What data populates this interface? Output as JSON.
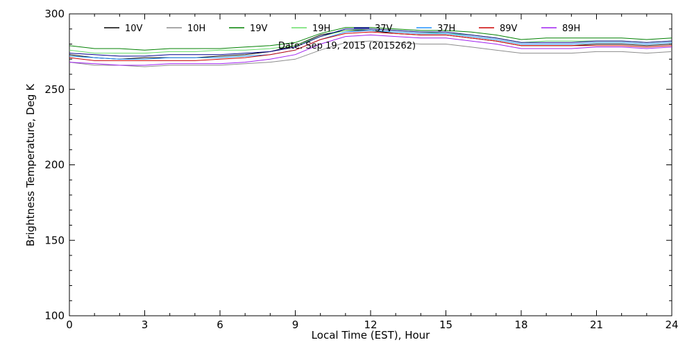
{
  "chart_data": {
    "type": "line",
    "xlabel": "Local Time (EST), Hour",
    "ylabel": "Brightness Temperature, Deg K",
    "xlim": [
      0,
      24
    ],
    "ylim": [
      100,
      300
    ],
    "x_ticks": [
      0,
      3,
      6,
      9,
      12,
      15,
      18,
      21,
      24
    ],
    "y_ticks": [
      100,
      150,
      200,
      250,
      300
    ],
    "grid": false,
    "legend_placement": "top",
    "annotation": "Date: Sep 19, 2015 (2015262)",
    "x": [
      0,
      1,
      2,
      3,
      4,
      5,
      6,
      7,
      8,
      9,
      10,
      11,
      12,
      13,
      14,
      15,
      16,
      17,
      18,
      19,
      20,
      21,
      22,
      23,
      24
    ],
    "series": [
      {
        "name": "10V",
        "color": "#000000",
        "values": [
          273,
          271,
          270,
          271,
          271,
          271,
          272,
          273,
          275,
          279,
          286,
          289,
          289,
          287,
          286,
          286,
          284,
          282,
          279,
          279,
          279,
          280,
          280,
          279,
          280
        ]
      },
      {
        "name": "10H",
        "color": "#8c8c8c",
        "values": [
          268,
          266,
          266,
          265,
          266,
          266,
          266,
          267,
          268,
          270,
          276,
          281,
          282,
          281,
          280,
          280,
          278,
          276,
          274,
          274,
          274,
          275,
          275,
          274,
          275
        ]
      },
      {
        "name": "19V",
        "color": "#008000",
        "values": [
          279,
          277,
          277,
          276,
          277,
          277,
          277,
          278,
          279,
          281,
          287,
          291,
          291,
          290,
          289,
          289,
          288,
          286,
          283,
          284,
          284,
          284,
          284,
          283,
          284
        ]
      },
      {
        "name": "19H",
        "color": "#66dd66",
        "values": [
          276,
          274,
          274,
          274,
          275,
          275,
          276,
          276,
          277,
          279,
          285,
          289,
          290,
          289,
          288,
          287,
          286,
          284,
          281,
          282,
          282,
          282,
          282,
          281,
          282
        ]
      },
      {
        "name": "37V",
        "color": "#00008b",
        "values": [
          274,
          273,
          272,
          272,
          273,
          273,
          273,
          274,
          275,
          278,
          285,
          290,
          290,
          289,
          288,
          288,
          286,
          284,
          281,
          281,
          281,
          282,
          282,
          281,
          282
        ]
      },
      {
        "name": "37H",
        "color": "#1e90ff",
        "values": [
          272,
          271,
          270,
          270,
          271,
          271,
          271,
          272,
          273,
          276,
          283,
          288,
          289,
          288,
          287,
          287,
          285,
          283,
          280,
          280,
          280,
          281,
          281,
          280,
          281
        ]
      },
      {
        "name": "89V",
        "color": "#cc0000",
        "values": [
          271,
          269,
          269,
          269,
          269,
          269,
          270,
          271,
          273,
          276,
          283,
          287,
          288,
          287,
          286,
          286,
          284,
          282,
          279,
          279,
          279,
          279,
          279,
          278,
          279
        ]
      },
      {
        "name": "89H",
        "color": "#a020f0",
        "values": [
          268,
          267,
          266,
          266,
          267,
          267,
          267,
          268,
          270,
          273,
          280,
          285,
          286,
          285,
          284,
          284,
          282,
          280,
          277,
          277,
          277,
          278,
          278,
          277,
          278
        ]
      }
    ]
  }
}
